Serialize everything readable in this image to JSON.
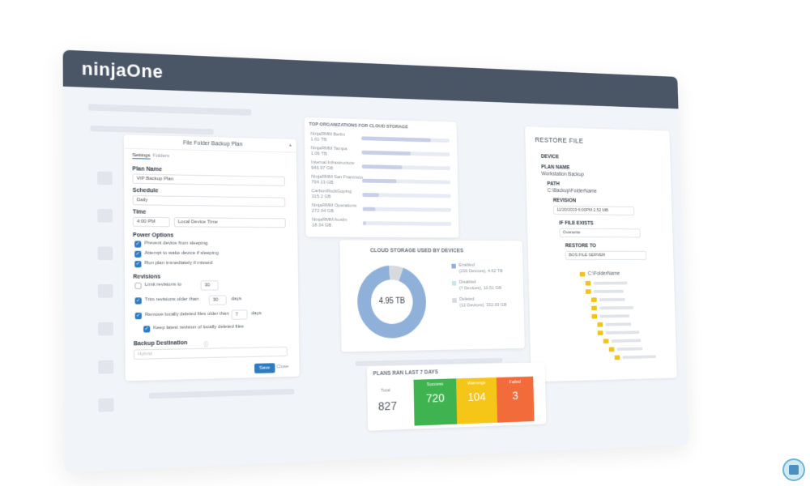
{
  "brand": {
    "logo": "ninjaOne"
  },
  "backup_plan": {
    "title": "File Folder Backup Plan",
    "tabs": [
      "Settings",
      "Folders"
    ],
    "plan_name_label": "Plan Name",
    "plan_name_value": "VIP Backup Plan",
    "schedule_label": "Schedule",
    "schedule_value": "Daily",
    "time_label": "Time",
    "time_value": "4:00 PM",
    "timezone_value": "Local Device Time",
    "power_options_label": "Power Options",
    "power_options": [
      "Prevent device from sleeping",
      "Attempt to wake device if sleeping",
      "Run plan immediately if missed"
    ],
    "revisions_label": "Revisions",
    "limit_revisions_label": "Limit revisions to",
    "limit_revisions_value": "30",
    "trim_label": "Trim revisions older than",
    "trim_value": "30",
    "trim_unit": "days",
    "remove_label": "Remove locally deleted files older than",
    "remove_value": "7",
    "remove_unit": "days",
    "keep_latest_label": "Keep latest revision of locally deleted files",
    "backup_destination_label": "Backup Destination",
    "destination_placeholder": "Hybrid",
    "save_label": "Save",
    "close_label": "Close"
  },
  "top_orgs": {
    "title": "TOP ORGANIZATIONS FOR CLOUD STORAGE",
    "rows": [
      {
        "name": "NinjaRMM Berlin",
        "size": "1.61 TB",
        "fill": 0.78
      },
      {
        "name": "NinjaRMM Tampa",
        "size": "1.06 TB",
        "fill": 0.55
      },
      {
        "name": "Internal Infrastructure",
        "size": "946.97 GB",
        "fill": 0.45
      },
      {
        "name": "NinjaRMM San Francisco",
        "size": "794.13 GB",
        "fill": 0.38
      },
      {
        "name": "CarbonRockGoping",
        "size": "315.2 GB",
        "fill": 0.18
      },
      {
        "name": "NinjaRMM Operations",
        "size": "272.04 GB",
        "fill": 0.14
      },
      {
        "name": "NinjaRMM Austin",
        "size": "18.34 GB",
        "fill": 0.03
      }
    ]
  },
  "cloud_storage": {
    "title": "CLOUD STORAGE USED BY DEVICES",
    "center_value": "4.95 TB",
    "legend": [
      {
        "label": "Enabled",
        "detail": "(236 Devices), 4.62 TB",
        "color": "#8fb0d8"
      },
      {
        "label": "Disabled",
        "detail": "(7 Devices), 10.51 GB",
        "color": "#c9e5ea"
      },
      {
        "label": "Deleted",
        "detail": "(12 Devices), 332.03 GB",
        "color": "#d6d9de"
      }
    ],
    "slices": [
      {
        "name": "Enabled",
        "value": 4.62,
        "color": "#8fb0d8"
      },
      {
        "name": "Disabled",
        "value": 0.01,
        "color": "#c9e5ea"
      },
      {
        "name": "Deleted",
        "value": 0.32,
        "color": "#d6d9de"
      }
    ]
  },
  "restore_file": {
    "title": "RESTORE FILE",
    "device_label": "DEVICE",
    "plan_name_label": "PLAN NAME",
    "plan_name_value": "Workstation Backup",
    "path_label": "PATH",
    "path_value": "C:\\Backup\\FolderName",
    "revision_label": "REVISION",
    "revision_value": "11/20/2019 6:00PM  2.52 MB",
    "if_file_exists_label": "IF FILE EXISTS",
    "if_file_exists_value": "Overwrite",
    "restore_to_label": "RESTORE TO",
    "restore_to_value": "BOS FILE SERVER",
    "tree_root": "C:\\FolderName"
  },
  "plans_ran": {
    "title": "PLANS RAN LAST 7 DAYS",
    "total_label": "Total",
    "total_value": "827",
    "boxes": [
      {
        "label": "Success",
        "value": "720",
        "color": "#3fb34f"
      },
      {
        "label": "Warnings",
        "value": "104",
        "color": "#f5c518"
      },
      {
        "label": "Failed",
        "value": "3",
        "color": "#f26b3a"
      }
    ]
  }
}
